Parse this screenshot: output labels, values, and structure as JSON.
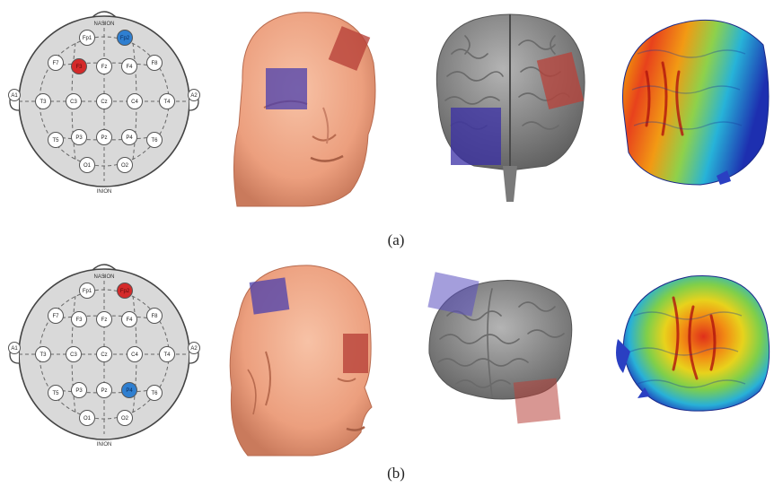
{
  "figure": {
    "caption_a": "(a)",
    "caption_b": "(b)"
  },
  "montage": {
    "top_label": "NASION",
    "bottom_label": "INION",
    "electrodes": [
      "Fp1",
      "Fp2",
      "F7",
      "F3",
      "Fz",
      "F4",
      "F8",
      "A1",
      "T3",
      "C3",
      "Cz",
      "C4",
      "T4",
      "A2",
      "T5",
      "P3",
      "Pz",
      "P4",
      "T6",
      "O1",
      "O2"
    ]
  },
  "rows": [
    {
      "id": "a",
      "red_electrode": "F3",
      "blue_electrode": "Fp2",
      "head_view": "frontal",
      "brain_view": "posterior"
    },
    {
      "id": "b",
      "red_electrode": "Fp2",
      "blue_electrode": "P4",
      "head_view": "right-oblique",
      "brain_view": "right-oblique"
    }
  ],
  "colors": {
    "anode": "#d42a2a",
    "cathode": "#2f7fd0",
    "skin": "#f2a584",
    "brain": "#8e8e8e",
    "patch_red": "#b8423a",
    "patch_blue": "#4a3fae"
  }
}
